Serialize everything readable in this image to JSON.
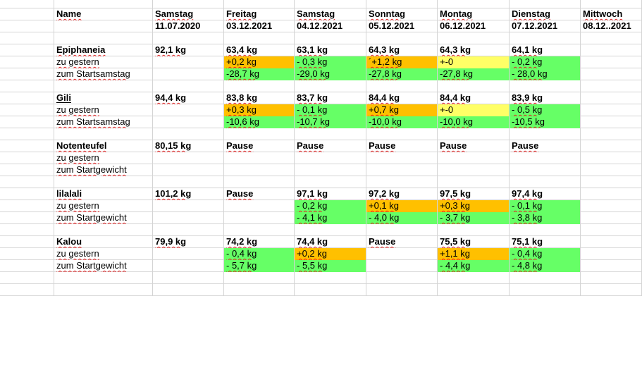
{
  "colors": {
    "orange": "#ffc000",
    "green": "#66ff66",
    "yellow": "#ffff66",
    "gridline": "#d4d4d4",
    "spellcheck_underline": "#e02020"
  },
  "rows": [
    {
      "name": "blank-row",
      "cells": []
    },
    {
      "name": "header-days-row",
      "cells": [
        {
          "c": 1,
          "t": "Name",
          "b": 1,
          "u": 1
        },
        {
          "c": 2,
          "t": "Samstag",
          "b": 1,
          "u": 1
        },
        {
          "c": 3,
          "t": "Freitag",
          "b": 1,
          "u": 1
        },
        {
          "c": 4,
          "t": "Samstag",
          "b": 1,
          "u": 1
        },
        {
          "c": 5,
          "t": "Sonntag",
          "b": 1,
          "u": 1
        },
        {
          "c": 6,
          "t": "Montag",
          "b": 1,
          "u": 1
        },
        {
          "c": 7,
          "t": "Dienstag",
          "b": 1,
          "u": 1
        },
        {
          "c": 8,
          "t": "Mittwoch",
          "b": 1,
          "u": 1
        }
      ]
    },
    {
      "name": "header-dates-row",
      "cells": [
        {
          "c": 2,
          "t": "11.07.2020",
          "b": 1
        },
        {
          "c": 3,
          "t": "03.12.2021",
          "b": 1
        },
        {
          "c": 4,
          "t": "04.12.2021",
          "b": 1
        },
        {
          "c": 5,
          "t": "05.12.2021",
          "b": 1
        },
        {
          "c": 6,
          "t": "06.12.2021",
          "b": 1
        },
        {
          "c": 7,
          "t": "07.12.2021",
          "b": 1
        },
        {
          "c": 8,
          "t": "08.12..2021",
          "b": 1
        }
      ]
    },
    {
      "name": "blank-row",
      "cells": []
    },
    {
      "name": "epiphaneia-weight-row",
      "cells": [
        {
          "c": 1,
          "t": "Epiphaneia",
          "b": 1,
          "u": 1
        },
        {
          "c": 2,
          "t": "92,1 kg",
          "b": 1,
          "u": 1
        },
        {
          "c": 3,
          "t": "63,4 kg",
          "b": 1,
          "u": 1
        },
        {
          "c": 4,
          "t": "63,1 kg",
          "b": 1,
          "u": 1
        },
        {
          "c": 5,
          "t": "64,3 kg",
          "b": 1,
          "u": 1
        },
        {
          "c": 6,
          "t": "64,3 kg",
          "b": 1,
          "u": 1
        },
        {
          "c": 7,
          "t": "64,1 kg",
          "b": 1,
          "u": 1
        }
      ]
    },
    {
      "name": "epiphaneia-yesterday-row",
      "cells": [
        {
          "c": 1,
          "t": "zu gestern",
          "u": 1
        },
        {
          "c": 3,
          "t": "+0,2 kg",
          "u": 1,
          "bg": "orange"
        },
        {
          "c": 4,
          "t": "- 0,3 kg",
          "u": 1,
          "bg": "green"
        },
        {
          "c": 5,
          "t": "´+1,2 kg",
          "u": 1,
          "bg": "orange"
        },
        {
          "c": 6,
          "t": "+-0",
          "bg": "yellow"
        },
        {
          "c": 7,
          "t": "- 0,2 kg",
          "u": 1,
          "bg": "green"
        }
      ]
    },
    {
      "name": "epiphaneia-start-row",
      "cells": [
        {
          "c": 1,
          "t": "zum Startsamstag",
          "u": 1
        },
        {
          "c": 3,
          "t": "-28,7 kg",
          "u": 1,
          "bg": "green"
        },
        {
          "c": 4,
          "t": "-29,0 kg",
          "u": 1,
          "bg": "green"
        },
        {
          "c": 5,
          "t": "-27,8 kg",
          "u": 1,
          "bg": "green"
        },
        {
          "c": 6,
          "t": "-27,8 kg",
          "u": 1,
          "bg": "green"
        },
        {
          "c": 7,
          "t": "- 28,0 kg",
          "u": 1,
          "bg": "green"
        }
      ]
    },
    {
      "name": "blank-row",
      "cells": []
    },
    {
      "name": "gili-weight-row",
      "cells": [
        {
          "c": 1,
          "t": "Gili",
          "b": 1,
          "o": 1
        },
        {
          "c": 2,
          "t": "94,4 kg",
          "b": 1,
          "u": 1
        },
        {
          "c": 3,
          "t": "83,8 kg",
          "b": 1,
          "u": 1
        },
        {
          "c": 4,
          "t": "83,7 kg",
          "b": 1,
          "u": 1
        },
        {
          "c": 5,
          "t": "84,4 kg",
          "b": 1,
          "u": 1
        },
        {
          "c": 6,
          "t": "84,4 kg",
          "b": 1,
          "u": 1
        },
        {
          "c": 7,
          "t": "83,9 kg",
          "b": 1,
          "u": 1
        }
      ]
    },
    {
      "name": "gili-yesterday-row",
      "cells": [
        {
          "c": 1,
          "t": "zu gestern",
          "u": 1
        },
        {
          "c": 3,
          "t": "+0,3 kg",
          "u": 1,
          "bg": "orange"
        },
        {
          "c": 4,
          "t": "- 0,1 kg",
          "u": 1,
          "bg": "green"
        },
        {
          "c": 5,
          "t": "+0,7 kg",
          "u": 1,
          "bg": "orange"
        },
        {
          "c": 6,
          "t": "+-0",
          "bg": "yellow"
        },
        {
          "c": 7,
          "t": "- 0,5 kg",
          "u": 1,
          "bg": "green"
        }
      ]
    },
    {
      "name": "gili-start-row",
      "cells": [
        {
          "c": 1,
          "t": "zum Startsamstag",
          "u": 1
        },
        {
          "c": 3,
          "t": "-10,6 kg",
          "u": 1,
          "bg": "green"
        },
        {
          "c": 4,
          "t": "-10,7 kg",
          "u": 1,
          "bg": "green"
        },
        {
          "c": 5,
          "t": "-10,0 kg",
          "u": 1,
          "bg": "green"
        },
        {
          "c": 6,
          "t": "-10,0 kg",
          "u": 1,
          "bg": "green"
        },
        {
          "c": 7,
          "t": "-10,5 kg",
          "u": 1,
          "bg": "green"
        }
      ]
    },
    {
      "name": "blank-row",
      "cells": []
    },
    {
      "name": "notenteufel-weight-row",
      "cells": [
        {
          "c": 1,
          "t": "Notenteufel",
          "b": 1,
          "u": 1
        },
        {
          "c": 2,
          "t": "80,15 kg",
          "b": 1,
          "u": 1
        },
        {
          "c": 3,
          "t": "Pause",
          "b": 1,
          "u": 1
        },
        {
          "c": 4,
          "t": "Pause",
          "b": 1,
          "u": 1
        },
        {
          "c": 5,
          "t": "Pause",
          "b": 1,
          "u": 1
        },
        {
          "c": 6,
          "t": "Pause",
          "b": 1,
          "u": 1
        },
        {
          "c": 7,
          "t": "Pause",
          "b": 1,
          "u": 1
        }
      ]
    },
    {
      "name": "notenteufel-yesterday-row",
      "cells": [
        {
          "c": 1,
          "t": "zu gestern",
          "u": 1
        }
      ]
    },
    {
      "name": "notenteufel-start-row",
      "cells": [
        {
          "c": 1,
          "t": "zum Startgewicht",
          "u": 1
        }
      ]
    },
    {
      "name": "blank-row",
      "cells": []
    },
    {
      "name": "lilalali-weight-row",
      "cells": [
        {
          "c": 1,
          "t": "lilalali",
          "b": 1,
          "u": 1
        },
        {
          "c": 2,
          "t": "101,2 kg",
          "b": 1,
          "u": 1
        },
        {
          "c": 3,
          "t": "Pause",
          "b": 1,
          "u": 1
        },
        {
          "c": 4,
          "t": "97,1 kg",
          "b": 1,
          "u": 1
        },
        {
          "c": 5,
          "t": "97,2 kg",
          "b": 1,
          "u": 1
        },
        {
          "c": 6,
          "t": "97,5 kg",
          "b": 1,
          "u": 1
        },
        {
          "c": 7,
          "t": "97,4 kg",
          "b": 1,
          "u": 1
        }
      ]
    },
    {
      "name": "lilalali-yesterday-row",
      "cells": [
        {
          "c": 1,
          "t": "zu gestern",
          "u": 1
        },
        {
          "c": 4,
          "t": "- 0,2 kg",
          "u": 1,
          "bg": "green"
        },
        {
          "c": 5,
          "t": "+0,1 kg",
          "u": 1,
          "bg": "orange"
        },
        {
          "c": 6,
          "t": "+0,3 kg",
          "u": 1,
          "bg": "orange"
        },
        {
          "c": 7,
          "t": "- 0,1 kg",
          "u": 1,
          "bg": "green"
        }
      ]
    },
    {
      "name": "lilalali-start-row",
      "cells": [
        {
          "c": 1,
          "t": "zum Startgewicht",
          "u": 1
        },
        {
          "c": 4,
          "t": "- 4,1 kg",
          "u": 1,
          "bg": "green"
        },
        {
          "c": 5,
          "t": "- 4,0 kg",
          "u": 1,
          "bg": "green"
        },
        {
          "c": 6,
          "t": "- 3,7 kg",
          "u": 1,
          "bg": "green"
        },
        {
          "c": 7,
          "t": "- 3,8 kg",
          "u": 1,
          "bg": "green"
        }
      ]
    },
    {
      "name": "blank-row",
      "cells": []
    },
    {
      "name": "kalou-weight-row",
      "cells": [
        {
          "c": 1,
          "t": "Kalou",
          "b": 1,
          "u": 1
        },
        {
          "c": 2,
          "t": "79,9 kg",
          "b": 1,
          "u": 1
        },
        {
          "c": 3,
          "t": "74,2 kg",
          "b": 1,
          "u": 1
        },
        {
          "c": 4,
          "t": "74,4 kg",
          "b": 1,
          "u": 1
        },
        {
          "c": 5,
          "t": "Pause",
          "b": 1,
          "u": 1
        },
        {
          "c": 6,
          "t": "75,5 kg",
          "b": 1,
          "u": 1
        },
        {
          "c": 7,
          "t": "75,1 kg",
          "b": 1,
          "u": 1
        }
      ]
    },
    {
      "name": "kalou-yesterday-row",
      "cells": [
        {
          "c": 1,
          "t": "zu gestern",
          "u": 1
        },
        {
          "c": 3,
          "t": "- 0,4 kg",
          "u": 1,
          "bg": "green"
        },
        {
          "c": 4,
          "t": "+0,2 kg",
          "u": 1,
          "bg": "orange"
        },
        {
          "c": 6,
          "t": "+1,1 kg",
          "u": 1,
          "bg": "orange"
        },
        {
          "c": 7,
          "t": "- 0,4 kg",
          "u": 1,
          "bg": "green"
        }
      ]
    },
    {
      "name": "kalou-start-row",
      "cells": [
        {
          "c": 1,
          "t": "zum Startgewicht",
          "u": 1
        },
        {
          "c": 3,
          "t": "- 5,7 kg",
          "u": 1,
          "bg": "green"
        },
        {
          "c": 4,
          "t": "- 5,5 kg",
          "u": 1,
          "bg": "green"
        },
        {
          "c": 6,
          "t": "- 4,4 kg",
          "u": 1,
          "bg": "green"
        },
        {
          "c": 7,
          "t": "- 4,8 kg",
          "u": 1,
          "bg": "green"
        }
      ]
    },
    {
      "name": "blank-row",
      "cells": []
    },
    {
      "name": "blank-row",
      "cells": []
    }
  ]
}
